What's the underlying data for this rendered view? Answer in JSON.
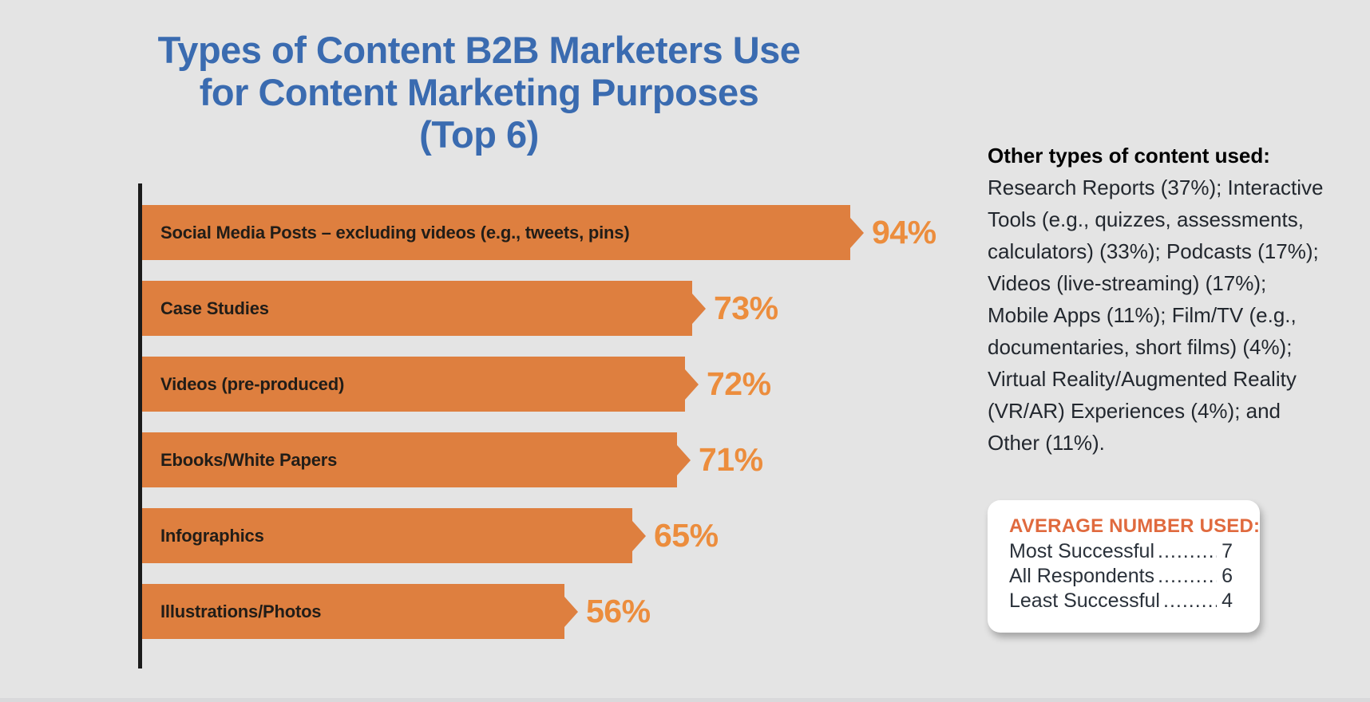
{
  "title": {
    "line1": "Types of Content B2B Marketers Use",
    "line2": "for Content Marketing Purposes",
    "line3": "(Top 6)"
  },
  "chart_data": {
    "type": "bar",
    "orientation": "horizontal",
    "title": "Types of Content B2B Marketers Use for Content Marketing Purposes (Top 6)",
    "xlabel": "",
    "ylabel": "",
    "unit": "%",
    "xlim": [
      0,
      100
    ],
    "grid": false,
    "legend": "none",
    "categories": [
      "Social Media Posts – excluding videos (e.g., tweets, pins)",
      "Case Studies",
      "Videos (pre-produced)",
      "Ebooks/White Papers",
      "Infographics",
      "Illustrations/Photos"
    ],
    "values": [
      94,
      73,
      72,
      71,
      65,
      56
    ],
    "rows": [
      {
        "label": "Social Media Posts – excluding videos (e.g., tweets, pins)",
        "value": 94,
        "value_label": "94%"
      },
      {
        "label": "Case Studies",
        "value": 73,
        "value_label": "73%"
      },
      {
        "label": "Videos (pre-produced)",
        "value": 72,
        "value_label": "72%"
      },
      {
        "label": "Ebooks/White Papers",
        "value": 71,
        "value_label": "71%"
      },
      {
        "label": "Infographics",
        "value": 65,
        "value_label": "65%"
      },
      {
        "label": "Illustrations/Photos",
        "value": 56,
        "value_label": "56%"
      }
    ],
    "bar_color": "#de7f3f",
    "value_label_color": "#ec8d3d",
    "title_color": "#3a6bb0"
  },
  "side_note": {
    "heading": "Other types of content used:",
    "lines": [
      "Research Reports (37%); Interactive",
      "Tools (e.g., quizzes, assessments,",
      "calculators) (33%); Podcasts (17%);",
      "Videos (live-streaming) (17%);",
      "Mobile Apps (11%); Film/TV (e.g.,",
      "documentaries, short films) (4%);",
      "Virtual Reality/Augmented Reality",
      "(VR/AR) Experiences (4%); and",
      "Other (11%)."
    ]
  },
  "average_box": {
    "heading": "AVERAGE NUMBER USED:",
    "rows": [
      {
        "label": "Most Successful",
        "dots": "........................................",
        "value": "7"
      },
      {
        "label": "All Respondents",
        "dots": "........................................",
        "value": "6"
      },
      {
        "label": "Least Successful",
        "dots": "........................................",
        "value": "4"
      }
    ]
  },
  "colors": {
    "background": "#e4e4e4",
    "bar_orange": "#de7f3f",
    "value_orange": "#ec8d3d",
    "title_blue": "#3a6bb0",
    "axis_black": "#1b1b1b",
    "box_heading_orange": "#e06a3e",
    "body_text": "#22272e"
  }
}
